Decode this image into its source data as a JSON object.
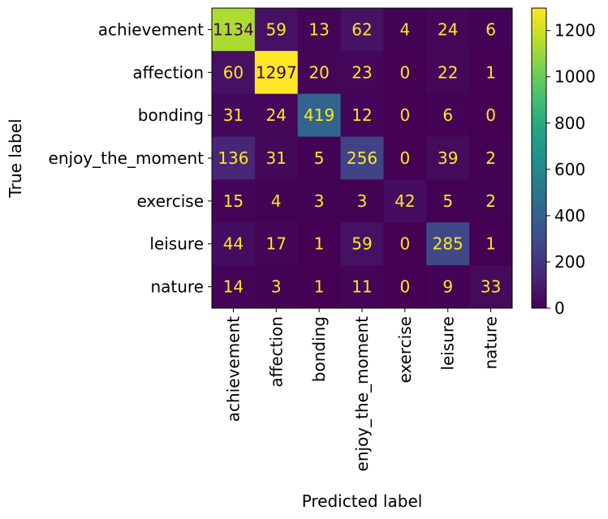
{
  "chart_data": {
    "type": "heatmap",
    "title": "",
    "xlabel": "Predicted label",
    "ylabel": "True label",
    "colormap": "viridis",
    "x_categories": [
      "achievement",
      "affection",
      "bonding",
      "enjoy_the_moment",
      "exercise",
      "leisure",
      "nature"
    ],
    "y_categories": [
      "achievement",
      "affection",
      "bonding",
      "enjoy_the_moment",
      "exercise",
      "leisure",
      "nature"
    ],
    "values": [
      [
        1134,
        59,
        13,
        62,
        4,
        24,
        6
      ],
      [
        60,
        1297,
        20,
        23,
        0,
        22,
        1
      ],
      [
        31,
        24,
        419,
        12,
        0,
        6,
        0
      ],
      [
        136,
        31,
        5,
        256,
        0,
        39,
        2
      ],
      [
        15,
        4,
        3,
        3,
        42,
        5,
        2
      ],
      [
        44,
        17,
        1,
        59,
        0,
        285,
        1
      ],
      [
        14,
        3,
        1,
        11,
        0,
        9,
        33
      ]
    ],
    "colorbar": {
      "range": [
        0,
        1297
      ],
      "ticks": [
        0,
        200,
        400,
        600,
        800,
        1000,
        1200
      ]
    },
    "text_colors": {
      "light": "#fde725",
      "dark": "#440154"
    }
  }
}
